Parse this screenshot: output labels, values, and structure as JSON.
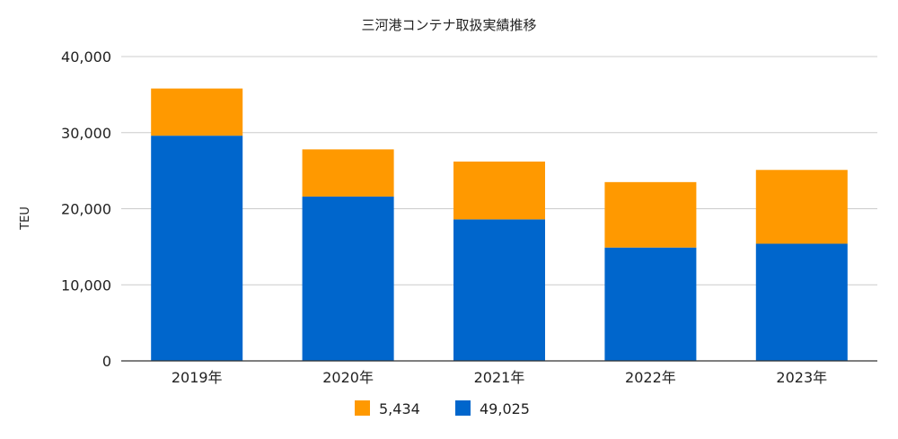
{
  "chart_data": {
    "type": "bar",
    "stacked": true,
    "title": "三河港コンテナ取扱実績推移",
    "xlabel": "",
    "ylabel": "TEU",
    "categories": [
      "2019年",
      "2020年",
      "2021年",
      "2022年",
      "2023年"
    ],
    "ylim": [
      0,
      40000
    ],
    "yticks": [
      0,
      10000,
      20000,
      30000,
      40000
    ],
    "ytick_labels": [
      "0",
      "10,000",
      "20,000",
      "30,000",
      "40,000"
    ],
    "grid": true,
    "legend_position": "bottom",
    "series": [
      {
        "name": "49,025",
        "color": "#0066CC",
        "values": [
          29600,
          21600,
          18600,
          14900,
          15400
        ]
      },
      {
        "name": "5,434",
        "color": "#FF9900",
        "values": [
          6200,
          6200,
          7600,
          8600,
          9700
        ]
      }
    ],
    "legend_order": [
      1,
      0
    ]
  }
}
